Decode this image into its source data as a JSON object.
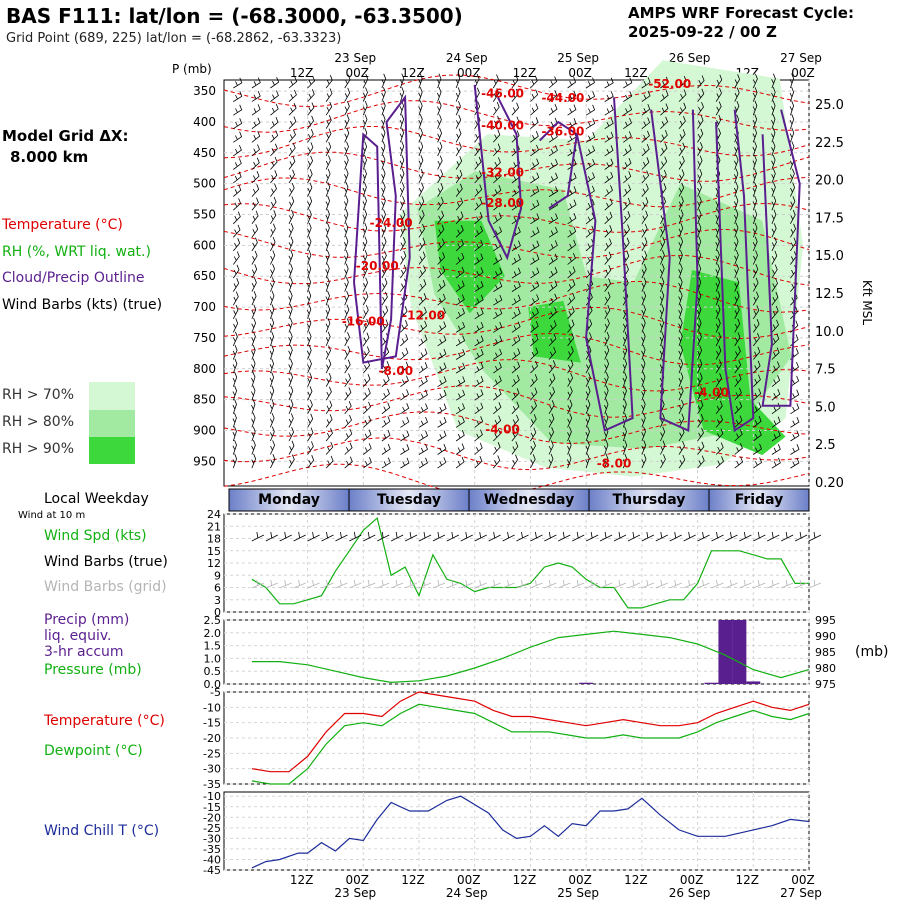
{
  "header": {
    "title": "BAS F111:  lat/lon = (-68.3000, -63.3500)",
    "subtitle": "Grid Point (689, 225) lat/lon = (-68.2862, -63.3323)",
    "cycle_line1": "AMPS WRF Forecast Cycle:",
    "cycle_line2": "2025-09-22 / 00  Z"
  },
  "legend": {
    "grid_label": "Model Grid ΔX:",
    "grid_value": "8.000 km",
    "temperature": "Temperature (°C)",
    "rh": "RH (%, WRT liq. wat.)",
    "cloud": "Cloud/Precip Outline",
    "wind": "Wind Barbs (kts) (true)",
    "rh70": "RH > 70%",
    "rh80": "RH > 80%",
    "rh90": "RH > 90%",
    "rh70_color": "#d4f8d4",
    "rh80_color": "#a2eaa2",
    "rh90_color": "#3cd83c"
  },
  "time_axis": {
    "top_ticks": [
      "12Z",
      "00Z",
      "12Z",
      "00Z",
      "12Z",
      "00Z",
      "12Z",
      "00Z",
      "12Z",
      "00Z"
    ],
    "top_dates": [
      "23 Sep",
      "24 Sep",
      "25 Sep",
      "26 Sep",
      "27 Sep"
    ],
    "bottom_ticks": [
      "12Z",
      "00Z",
      "12Z",
      "00Z",
      "12Z",
      "00Z",
      "12Z",
      "00Z",
      "12Z",
      "00Z"
    ],
    "bottom_dates": [
      "23 Sep",
      "24 Sep",
      "25 Sep",
      "26 Sep",
      "27 Sep"
    ],
    "local_weekday_label": "Local Weekday",
    "wind10_label": "Wind at 10 m",
    "weekdays": [
      "Monday",
      "Tuesday",
      "Wednesday",
      "Thursday",
      "Friday"
    ]
  },
  "chart_data": [
    {
      "type": "heatmap",
      "name": "cross-section",
      "pressure_axis_title": "P (mb)",
      "pressure_ticks": [
        350,
        400,
        450,
        500,
        550,
        600,
        650,
        700,
        750,
        800,
        850,
        900,
        950
      ],
      "height_ticks": [
        "25.0",
        "22.5",
        "20.0",
        "17.5",
        "15.0",
        "12.5",
        "10.0",
        "7.5",
        "5.0",
        "2.5",
        "0.20"
      ],
      "height_axis_title": "Kft MSL",
      "temp_labels": [
        {
          "text": "-52.00",
          "hour": 90,
          "p": 345
        },
        {
          "text": "-46.00",
          "hour": 54,
          "p": 360
        },
        {
          "text": "-44.00",
          "hour": 67,
          "p": 368
        },
        {
          "text": "-40.00",
          "hour": 54,
          "p": 412
        },
        {
          "text": "-36.00",
          "hour": 67,
          "p": 422
        },
        {
          "text": "-32.00",
          "hour": 54,
          "p": 488
        },
        {
          "text": "-28.00",
          "hour": 54,
          "p": 538
        },
        {
          "text": "-24.00",
          "hour": 30,
          "p": 570
        },
        {
          "text": "-20.00",
          "hour": 27,
          "p": 640
        },
        {
          "text": "-16.00",
          "hour": 24,
          "p": 730
        },
        {
          "text": "-12.00",
          "hour": 37,
          "p": 720
        },
        {
          "text": "-8.00",
          "hour": 31,
          "p": 810
        },
        {
          "text": "-4.00",
          "hour": 99,
          "p": 845
        },
        {
          "text": "-4.00",
          "hour": 54,
          "p": 905
        },
        {
          "text": "-8.00",
          "hour": 78,
          "p": 960
        }
      ]
    },
    {
      "type": "line",
      "name": "wind-speed",
      "legend": [
        "Wind Spd (kts)",
        "Wind Barbs (true)",
        "Wind Barbs (grid)"
      ],
      "y_ticks": [
        0,
        3,
        6,
        9,
        12,
        15,
        18,
        21,
        24
      ],
      "ylim": [
        0,
        24
      ],
      "x_hours": [
        0,
        3,
        6,
        9,
        12,
        15,
        18,
        21,
        24,
        27,
        30,
        33,
        36,
        39,
        42,
        45,
        48,
        51,
        54,
        57,
        60,
        63,
        66,
        69,
        72,
        75,
        78,
        81,
        84,
        87,
        90,
        93,
        96,
        99,
        102,
        105,
        108,
        111,
        114,
        117,
        120
      ],
      "values": [
        8,
        6,
        2,
        2,
        3,
        4,
        10,
        15,
        20,
        23,
        9,
        11,
        4,
        14,
        8,
        7,
        5,
        6,
        6,
        6,
        7,
        11,
        12,
        11,
        8,
        6,
        6,
        1,
        1,
        2,
        3,
        3,
        7,
        15,
        15,
        15,
        14,
        13,
        13,
        7,
        7
      ],
      "colors": {
        "speed": "#12b012"
      }
    },
    {
      "type": "bar",
      "name": "precip-pressure",
      "legend": [
        "Precip (mm)",
        "liq. equiv.",
        "3-hr accum",
        "Pressure (mb)"
      ],
      "left_ticks": [
        "0.0",
        "0.5",
        "1.0",
        "1.5",
        "2.0",
        "2.5"
      ],
      "right_ticks": [
        975,
        980,
        985,
        990,
        995
      ],
      "right_axis_unit": "(mb)",
      "precip_ylim": [
        0,
        2.5
      ],
      "pressure_ylim": [
        975,
        995
      ],
      "precip": [
        {
          "hour": 72,
          "mm": 0.05
        },
        {
          "hour": 99,
          "mm": 0.05
        },
        {
          "hour": 102,
          "mm": 2.5
        },
        {
          "hour": 105,
          "mm": 2.5
        },
        {
          "hour": 108,
          "mm": 0.1
        }
      ],
      "pressure_hours": [
        0,
        6,
        12,
        18,
        24,
        30,
        36,
        42,
        48,
        54,
        60,
        66,
        72,
        78,
        84,
        90,
        96,
        102,
        108,
        114,
        120
      ],
      "pressure": [
        982,
        982,
        981,
        979,
        977,
        975.5,
        976,
        977.5,
        980,
        983,
        986.5,
        989.5,
        990.5,
        991.5,
        990.5,
        989.5,
        987.5,
        984,
        979.5,
        977,
        979.5
      ],
      "colors": {
        "precip": "#5a1f8f",
        "pressure": "#12b012"
      }
    },
    {
      "type": "line",
      "name": "temperature-dewpoint",
      "series": [
        {
          "name": "Temperature (°C)",
          "values": [
            -30,
            -31,
            -31,
            -26,
            -18,
            -12,
            -12,
            -13,
            -8,
            -5,
            -6,
            -7,
            -8,
            -11,
            -13,
            -13,
            -14,
            -15,
            -16,
            -15,
            -14,
            -15,
            -16,
            -16,
            -15,
            -12,
            -10,
            -8,
            -10,
            -11,
            -9
          ]
        },
        {
          "name": "Dewpoint (°C)",
          "values": [
            -34,
            -35,
            -35,
            -30,
            -22,
            -16,
            -15,
            -16,
            -12,
            -9,
            -10,
            -11,
            -12,
            -15,
            -18,
            -18,
            -18,
            -19,
            -20,
            -20,
            -19,
            -20,
            -20,
            -20,
            -18,
            -15,
            -13,
            -11,
            -13,
            -14,
            -12
          ]
        }
      ],
      "x_hours": [
        0,
        4,
        8,
        12,
        16,
        20,
        24,
        28,
        32,
        36,
        40,
        44,
        48,
        52,
        56,
        60,
        64,
        68,
        72,
        76,
        80,
        84,
        88,
        92,
        96,
        100,
        104,
        108,
        112,
        116,
        120
      ],
      "y_ticks": [
        -35,
        -30,
        -25,
        -20,
        -15,
        -10,
        -5
      ],
      "ylim": [
        -35,
        -5
      ],
      "colors": {
        "temperature": "#e00000",
        "dewpoint": "#12b012"
      }
    },
    {
      "type": "line",
      "name": "wind-chill",
      "series": [
        {
          "name": "Wind Chill T (°C)",
          "values": [
            -44,
            -41,
            -40,
            -37,
            -37,
            -32,
            -36,
            -30,
            -31,
            -21,
            -13,
            -17,
            -17,
            -12,
            -10,
            -14,
            -18,
            -26,
            -30,
            -29,
            -24,
            -29,
            -23,
            -24,
            -17,
            -17,
            -16,
            -11,
            -19,
            -26,
            -29,
            -29,
            -26,
            -24,
            -21,
            -22
          ]
        }
      ],
      "x_hours": [
        0,
        3,
        6,
        10,
        12,
        15,
        18,
        21,
        24,
        27,
        30,
        34,
        38,
        42,
        45,
        48,
        51,
        54,
        57,
        60,
        63,
        66,
        69,
        72,
        75,
        78,
        81,
        84,
        88,
        92,
        96,
        102,
        108,
        112,
        116,
        120
      ],
      "y_ticks": [
        -45,
        -40,
        -35,
        -30,
        -25,
        -20,
        -15,
        -10
      ],
      "ylim": [
        -45,
        -8
      ],
      "colors": {
        "windchill": "#1c2c9a"
      }
    }
  ]
}
